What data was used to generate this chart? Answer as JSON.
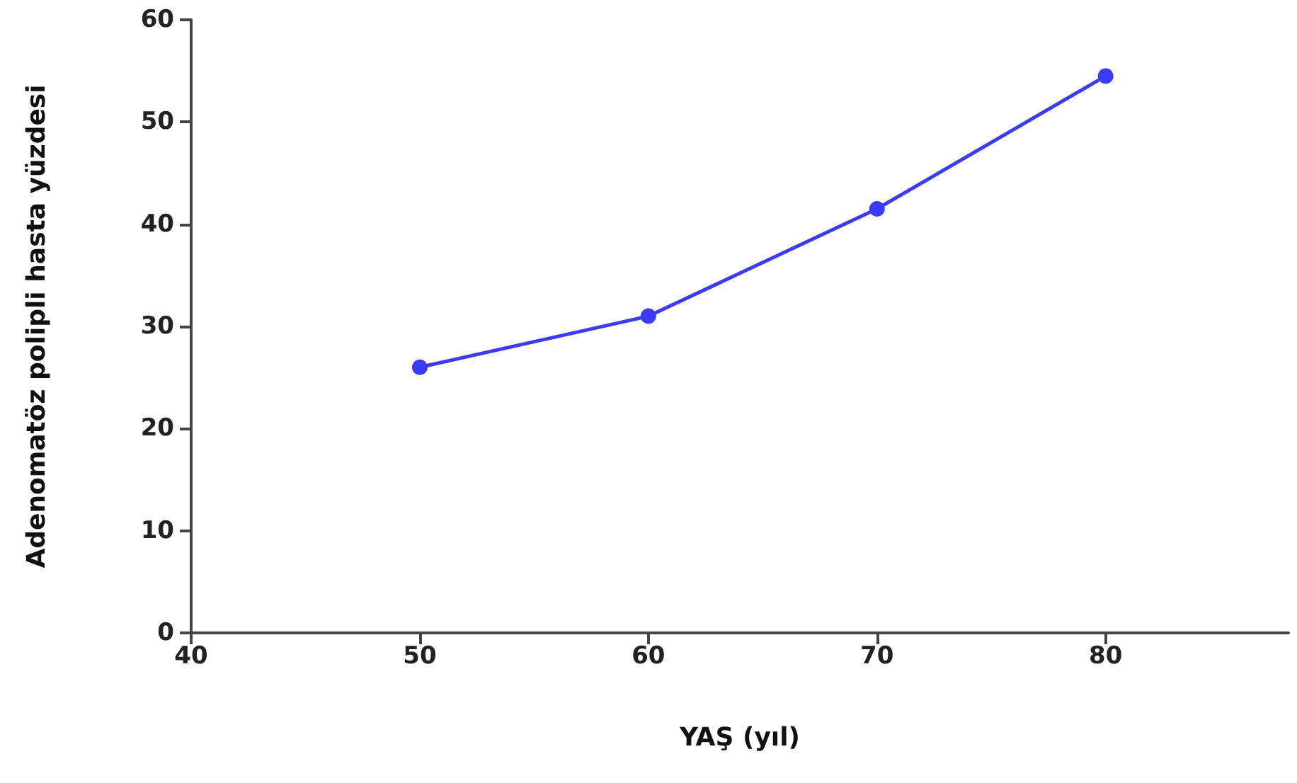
{
  "chart_data": {
    "type": "line",
    "xlabel": "YAŞ (yıl)",
    "ylabel": "Adenomatöz polipli hasta yüzdesi",
    "x": [
      50,
      60,
      70,
      80
    ],
    "series": [
      {
        "color": "#3b3bf5",
        "values": [
          26,
          31,
          41.5,
          54.5
        ]
      }
    ],
    "xlim": [
      40,
      88
    ],
    "xticks": [
      40,
      50,
      60,
      70,
      80
    ],
    "ylim": [
      0,
      60
    ],
    "yticks": [
      0,
      10,
      20,
      30,
      40,
      50,
      60
    ],
    "grid": false,
    "marker": "circle",
    "line_style": "solid"
  }
}
